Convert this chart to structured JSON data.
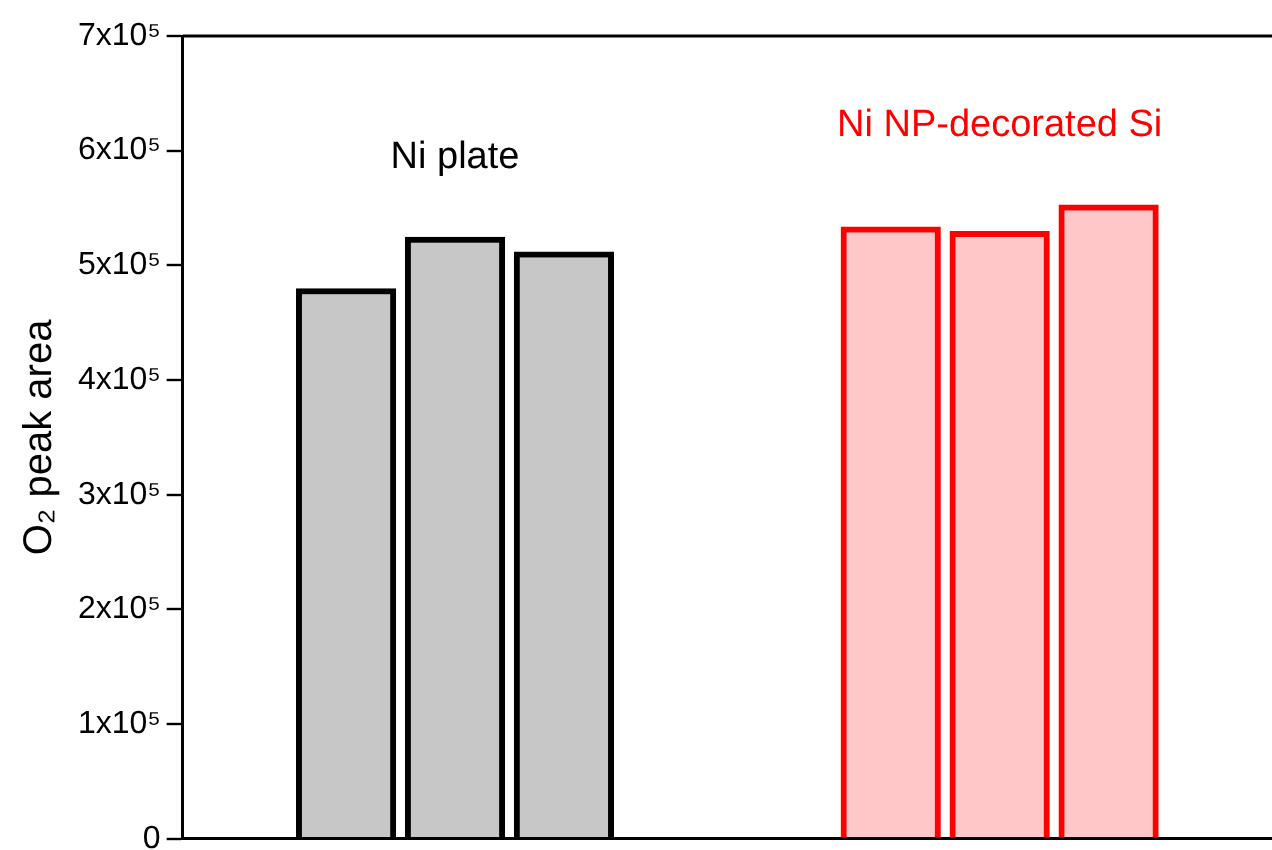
{
  "chart_data": {
    "type": "bar",
    "ylabel": "O₂ peak area",
    "categories": [
      null,
      null,
      null,
      null,
      null,
      null,
      null,
      null,
      null,
      null
    ],
    "series": [
      {
        "name": "Ni plate",
        "color": "#000000",
        "values": [
          null,
          480000,
          525000,
          512000,
          null,
          null,
          null,
          null,
          null,
          null
        ]
      },
      {
        "name": "Ni NP-decorated Si",
        "color": "#ff0000",
        "values": [
          null,
          null,
          null,
          null,
          null,
          null,
          534000,
          530000,
          553000,
          null
        ]
      }
    ],
    "ylim": [
      0,
      700000
    ],
    "yticks": [
      0,
      {
        "value": 100000,
        "label": "1x10⁵"
      },
      {
        "value": 200000,
        "label": "2x10⁵"
      },
      {
        "value": 300000,
        "label": "3x10⁵"
      },
      {
        "value": 400000,
        "label": "4x10⁵"
      },
      {
        "value": 500000,
        "label": "5x10⁵"
      },
      {
        "value": 600000,
        "label": "6x10⁵"
      },
      {
        "value": 700000,
        "label": "7x10⁵"
      }
    ],
    "grid": false,
    "legend": false
  }
}
